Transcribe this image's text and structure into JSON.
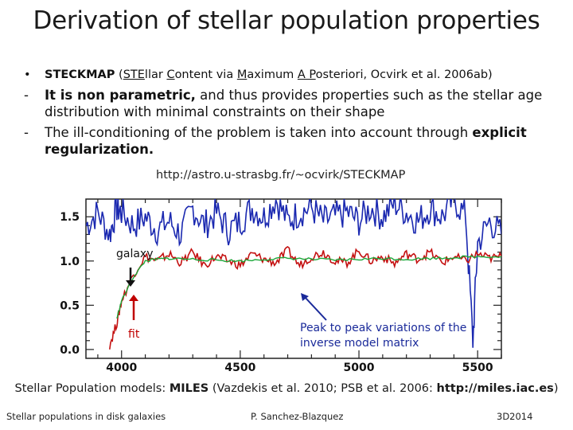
{
  "slide": {
    "title": "Derivation of stellar population properties",
    "bullet1": {
      "marker": "•",
      "strong": "STECKMAP",
      "p1": " (",
      "u1": "STE",
      "p2": "llar ",
      "u2": "C",
      "p3": "ontent via ",
      "u3": "M",
      "p4": "aximum ",
      "u4": "A P",
      "p5": "osteriori, Ocvirk et al. 2006ab)"
    },
    "bullet2": {
      "marker": "-",
      "strong": "It is non parametric,",
      "rest": " and thus provides properties such as the stellar age distribution with minimal constraints on their shape"
    },
    "bullet3": {
      "marker": "-",
      "text": "The ill-conditioning of the problem is taken into account through ",
      "strong": "explicit regularization."
    },
    "link": "http://astro.u-strasbg.fr/~ocvirk/STECKMAP",
    "figure": {
      "label_galaxy": "galaxy",
      "label_fit": "fit",
      "label_peak": "Peak to peak variations of the inverse model matrix",
      "colors": {
        "galaxy": "#c41010",
        "matrix": "#1a28b0",
        "fit": "#1ca83a",
        "arrow_red": "#c00000",
        "arrow_blue": "#1a2a9a"
      }
    },
    "chart_data": {
      "type": "line",
      "x_ticks": [
        "4000",
        "4500",
        "5000",
        "5500"
      ],
      "y_ticks": [
        "0.0",
        "0.5",
        "1.0",
        "1.5"
      ],
      "xlim": [
        3850,
        5600
      ],
      "ylim": [
        -0.1,
        1.7
      ],
      "series": [
        {
          "color": "#1a28b0",
          "x": [
            3850,
            3900,
            3950,
            3980,
            4000,
            4050,
            4100,
            4150,
            4200,
            4250,
            4300,
            4350,
            4400,
            4450,
            4500,
            4550,
            4600,
            4650,
            4700,
            4750,
            4800,
            4850,
            4900,
            4950,
            5000,
            5050,
            5100,
            5150,
            5200,
            5250,
            5300,
            5350,
            5400,
            5450,
            5480,
            5500,
            5550,
            5600
          ],
          "y": [
            1.4,
            1.55,
            1.3,
            1.6,
            1.55,
            1.4,
            1.5,
            1.35,
            1.45,
            1.3,
            1.6,
            1.4,
            1.55,
            1.35,
            1.45,
            1.6,
            1.5,
            1.7,
            1.45,
            1.55,
            1.6,
            1.45,
            1.5,
            1.55,
            1.45,
            1.6,
            1.5,
            1.65,
            1.55,
            1.45,
            1.6,
            1.5,
            1.7,
            1.5,
            0.1,
            1.2,
            1.45,
            1.3
          ]
        },
        {
          "color": "#c41010",
          "x": [
            3950,
            3980,
            4000,
            4050,
            4100,
            4150,
            4200,
            4250,
            4300,
            4350,
            4400,
            4450,
            4500,
            4550,
            4600,
            4650,
            4700,
            4750,
            4800,
            4850,
            4900,
            4950,
            5000,
            5050,
            5100,
            5150,
            5200,
            5250,
            5300,
            5350,
            5400,
            5450,
            5500,
            5550,
            5600
          ],
          "y": [
            0.05,
            0.3,
            0.55,
            0.85,
            1.05,
            1.0,
            1.08,
            0.98,
            1.1,
            0.95,
            1.05,
            1.0,
            0.95,
            1.08,
            1.02,
            0.98,
            1.12,
            0.95,
            1.05,
            1.1,
            1.0,
            0.98,
            1.12,
            1.0,
            1.05,
            0.97,
            1.08,
            1.02,
            1.1,
            0.98,
            1.05,
            1.0,
            1.08,
            1.03,
            1.05
          ]
        },
        {
          "color": "#1ca83a",
          "x": [
            3980,
            4000,
            4050,
            4100,
            4150,
            4200,
            4300,
            4400,
            4500,
            4600,
            4700,
            4800,
            4900,
            5000,
            5100,
            5200,
            5300,
            5400,
            5500,
            5600
          ],
          "y": [
            0.35,
            0.55,
            0.82,
            1.0,
            1.02,
            1.03,
            1.02,
            1.01,
            1.0,
            1.02,
            1.03,
            1.02,
            1.01,
            1.02,
            1.03,
            1.02,
            1.03,
            1.04,
            1.05,
            1.05
          ]
        }
      ]
    },
    "caption": {
      "p1": "Stellar Population models: ",
      "b1": "MILES",
      "p2": " (Vazdekis et al. 2010; PSB et al. 2006: ",
      "b2": "http://miles.iac.es",
      "p3": ")"
    },
    "footer": {
      "left": "Stellar populations in disk galaxies",
      "center": "P. Sanchez-Blazquez",
      "right": "3D2014"
    }
  }
}
